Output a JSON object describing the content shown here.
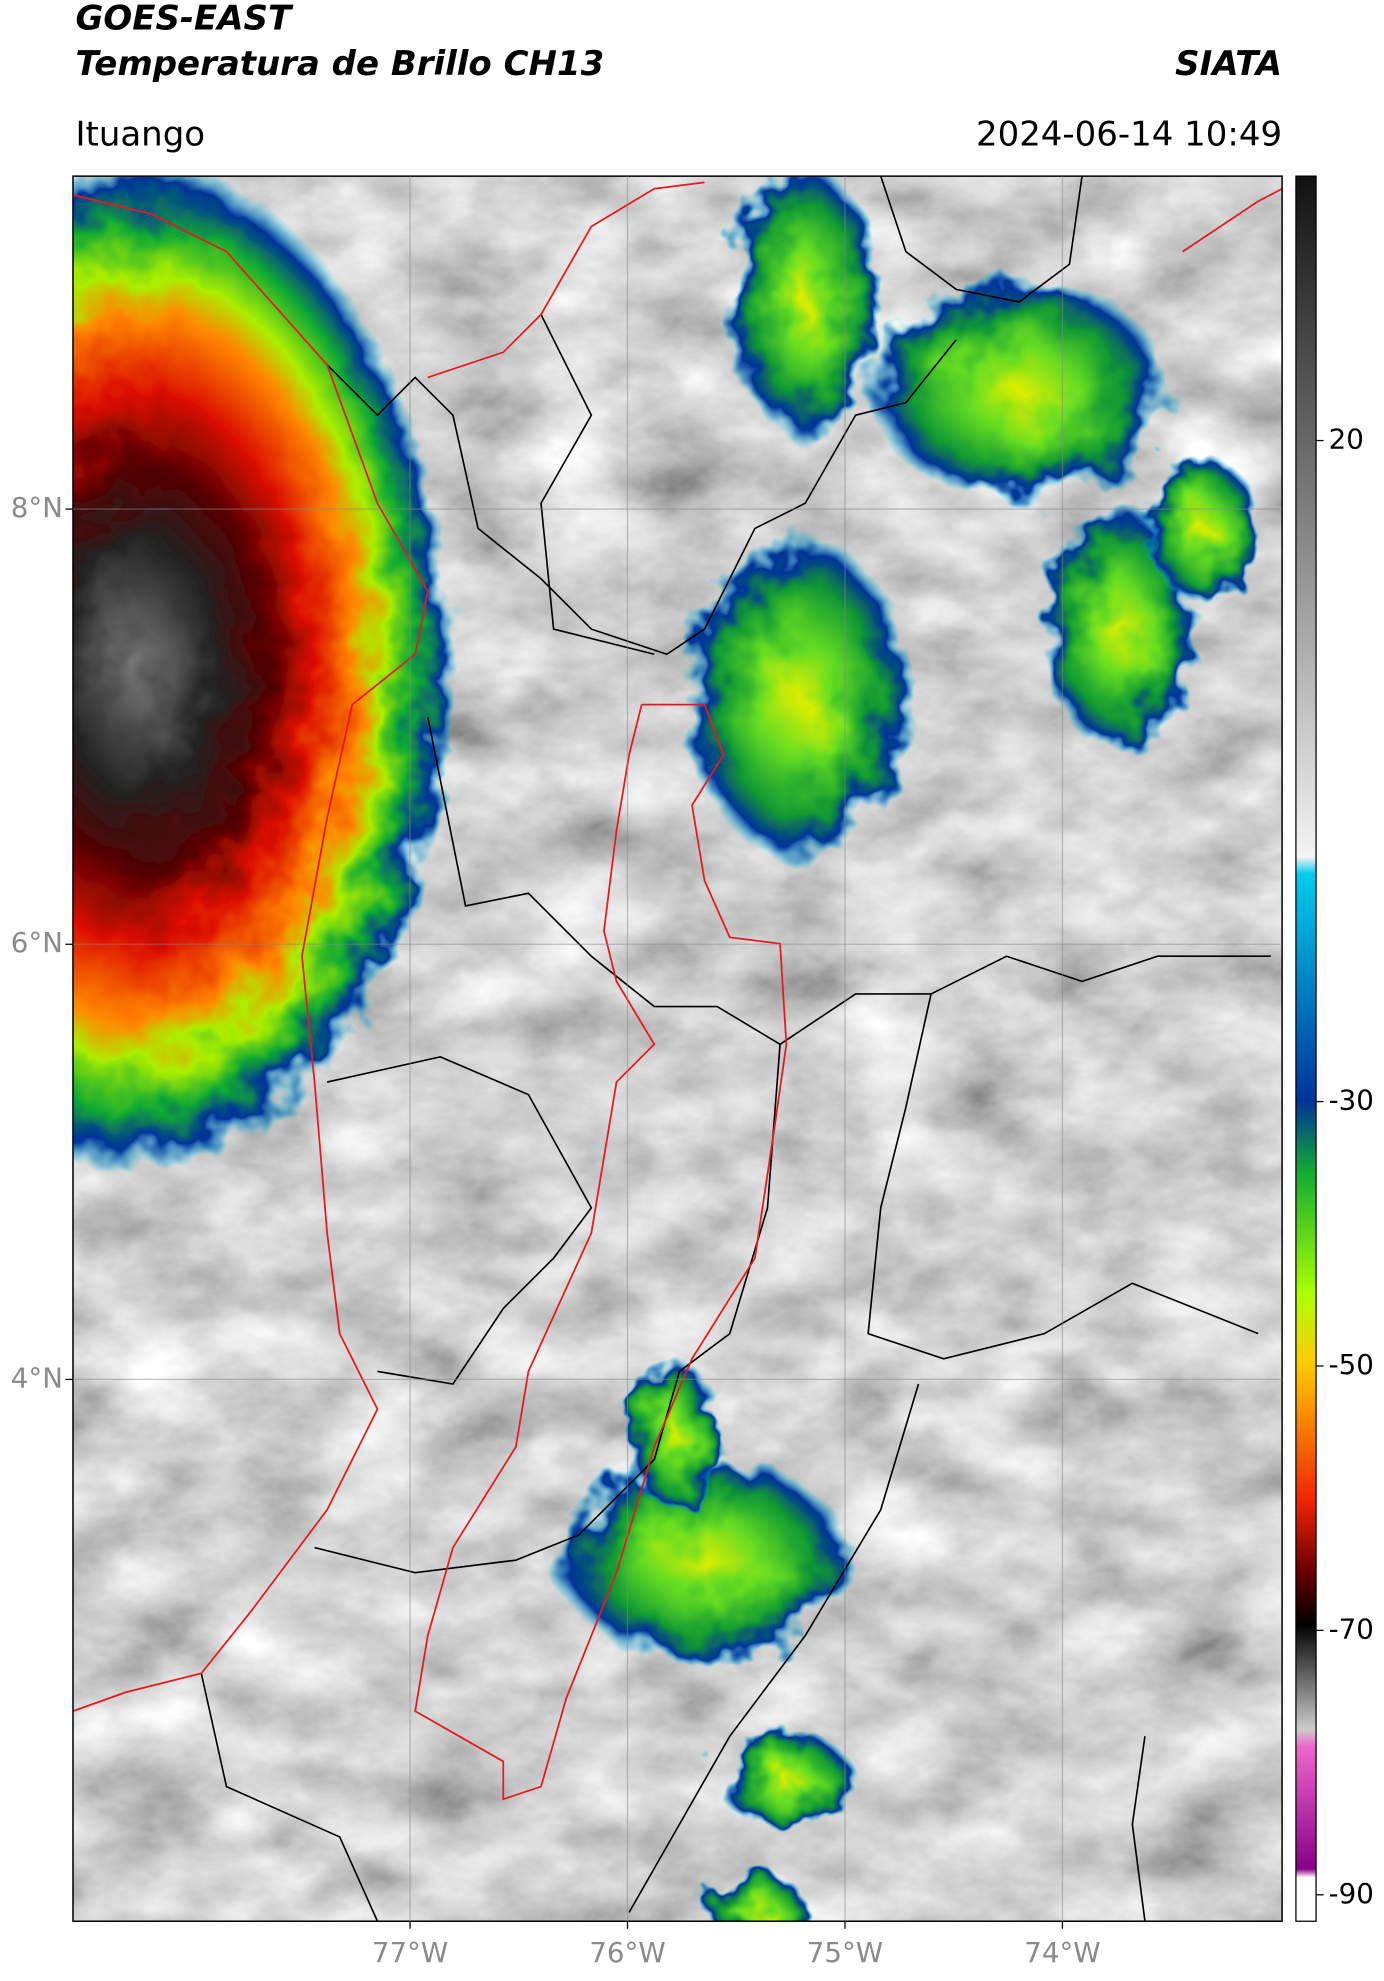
{
  "header": {
    "title": "GOES-EAST",
    "subtitle": "Temperatura de Brillo CH13",
    "agency": "SIATA",
    "location": "Ituango",
    "datetime": "2024-06-14 10:49"
  },
  "map": {
    "xlim": [
      -78.55,
      -72.99
    ],
    "ylim": [
      1.51,
      9.53
    ],
    "xticks": [
      {
        "value": -77,
        "label": "77°W"
      },
      {
        "value": -76,
        "label": "76°W"
      },
      {
        "value": -75,
        "label": "75°W"
      },
      {
        "value": -74,
        "label": "74°W"
      }
    ],
    "yticks": [
      {
        "value": 8,
        "label": "8°N"
      },
      {
        "value": 6,
        "label": "6°N"
      },
      {
        "value": 4,
        "label": "4°N"
      }
    ]
  },
  "colorbar": {
    "lim": [
      -92,
      40
    ],
    "ticks": [
      20,
      -30,
      -50,
      -70,
      -90
    ]
  }
}
